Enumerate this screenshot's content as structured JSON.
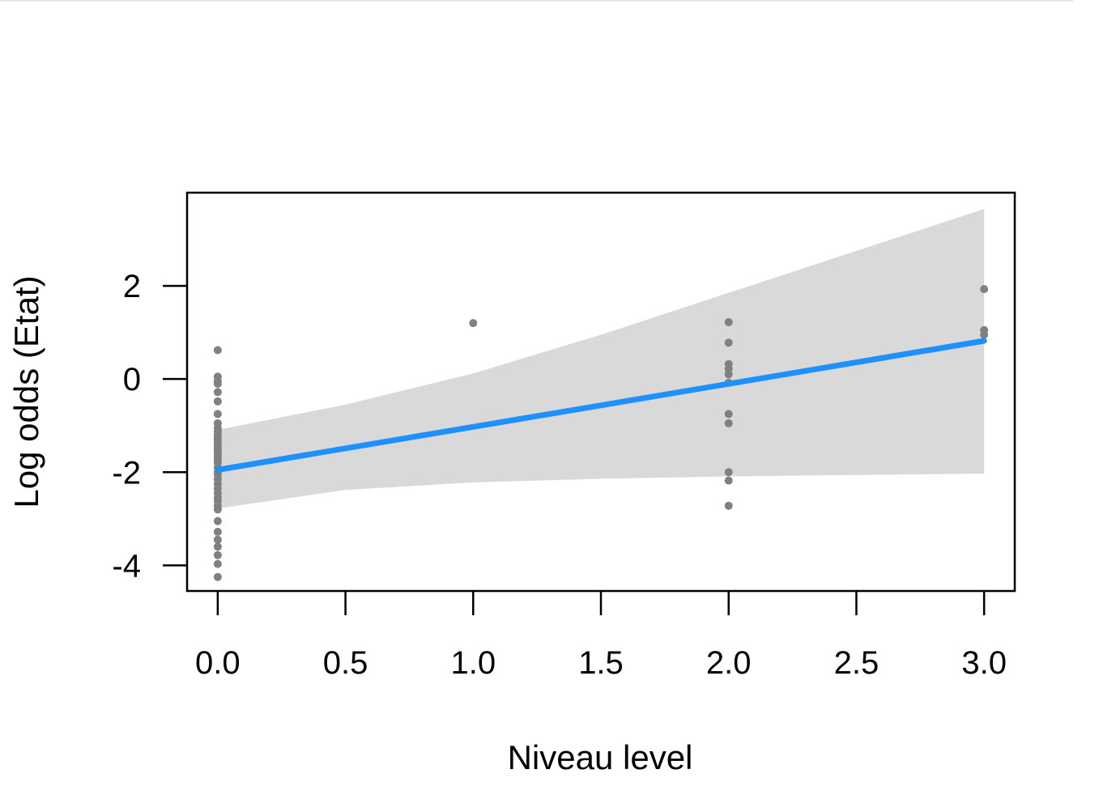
{
  "chart_data": {
    "type": "scatter",
    "title": "",
    "xlabel": "Niveau level",
    "ylabel": "Log odds (Etat)",
    "xlim": [
      -0.12,
      3.12
    ],
    "ylim": [
      -4.55,
      4.0
    ],
    "x_ticks": [
      0.0,
      0.5,
      1.0,
      1.5,
      2.0,
      2.5,
      3.0
    ],
    "x_tick_labels": [
      "0.0",
      "0.5",
      "1.0",
      "1.5",
      "2.0",
      "2.5",
      "3.0"
    ],
    "y_ticks": [
      2,
      0,
      -2,
      -4
    ],
    "y_tick_labels": [
      "2",
      "0",
      "-2",
      "-4"
    ],
    "grid": false,
    "legend": "none",
    "colors": {
      "points": "#808080",
      "fit_line": "#1e90ff",
      "confidence_band": "#d9d9d9",
      "frame": "#000000"
    },
    "fit_line": {
      "x": [
        0,
        3
      ],
      "y": [
        -1.95,
        0.82
      ]
    },
    "confidence_band": {
      "x": [
        0,
        0.5,
        1.0,
        1.5,
        2.0,
        2.5,
        3.0
      ],
      "lower": [
        -2.78,
        -2.38,
        -2.22,
        -2.14,
        -2.09,
        -2.06,
        -2.03
      ],
      "upper": [
        -1.09,
        -0.55,
        0.12,
        0.95,
        1.85,
        2.75,
        3.65
      ]
    },
    "points": {
      "x": [
        0,
        0,
        0,
        0,
        0,
        0,
        0,
        0,
        0,
        0,
        0,
        0,
        0,
        0,
        0,
        0,
        0,
        0,
        0,
        0,
        0,
        0,
        0,
        0,
        0,
        0,
        0,
        0,
        0,
        0,
        0,
        0,
        0,
        0,
        0,
        0,
        0,
        0,
        1,
        2,
        2,
        2,
        2,
        2,
        2,
        2,
        2,
        2,
        2,
        2,
        3,
        3,
        3
      ],
      "y": [
        0.62,
        0.05,
        -0.05,
        -0.1,
        -0.28,
        -0.48,
        -0.75,
        -0.95,
        -1.05,
        -1.12,
        -1.2,
        -1.28,
        -1.35,
        -1.42,
        -1.5,
        -1.58,
        -1.65,
        -1.72,
        -1.8,
        -1.9,
        -2.05,
        -2.15,
        -2.25,
        -2.35,
        -2.45,
        -2.55,
        -2.62,
        -2.72,
        -2.8,
        -3.05,
        -3.28,
        -3.45,
        -3.6,
        -3.78,
        -3.97,
        -4.25,
        -1.55,
        -2.0,
        1.2,
        1.22,
        0.78,
        0.32,
        0.22,
        0.1,
        -0.08,
        -0.75,
        -0.95,
        -2.18,
        -2.72,
        -2.0,
        1.93,
        1.05,
        0.95
      ]
    }
  }
}
